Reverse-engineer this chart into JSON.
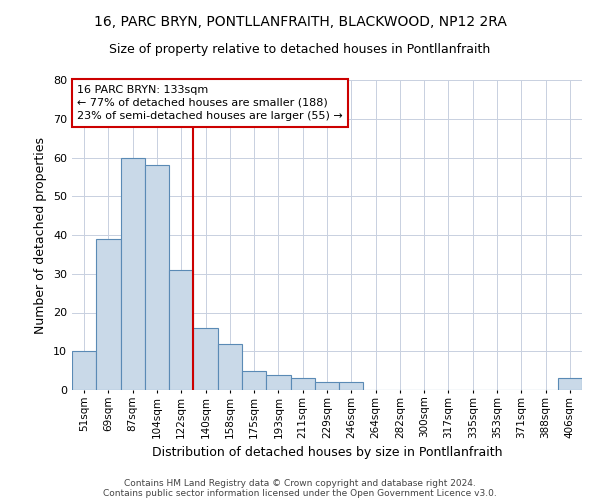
{
  "title1": "16, PARC BRYN, PONTLLANFRAITH, BLACKWOOD, NP12 2RA",
  "title2": "Size of property relative to detached houses in Pontllanfraith",
  "xlabel": "Distribution of detached houses by size in Pontllanfraith",
  "ylabel": "Number of detached properties",
  "categories": [
    "51sqm",
    "69sqm",
    "87sqm",
    "104sqm",
    "122sqm",
    "140sqm",
    "158sqm",
    "175sqm",
    "193sqm",
    "211sqm",
    "229sqm",
    "246sqm",
    "264sqm",
    "282sqm",
    "300sqm",
    "317sqm",
    "335sqm",
    "353sqm",
    "371sqm",
    "388sqm",
    "406sqm"
  ],
  "values": [
    10,
    39,
    60,
    58,
    31,
    16,
    12,
    5,
    4,
    3,
    2,
    2,
    0,
    0,
    0,
    0,
    0,
    0,
    0,
    0,
    3
  ],
  "bar_color": "#c9d9e8",
  "bar_edge_color": "#5a8ab5",
  "annotation_text": "16 PARC BRYN: 133sqm\n← 77% of detached houses are smaller (188)\n23% of semi-detached houses are larger (55) →",
  "annotation_box_color": "#ffffff",
  "annotation_box_edge": "#cc0000",
  "ylim": [
    0,
    80
  ],
  "yticks": [
    0,
    10,
    20,
    30,
    40,
    50,
    60,
    70,
    80
  ],
  "footer1": "Contains HM Land Registry data © Crown copyright and database right 2024.",
  "footer2": "Contains public sector information licensed under the Open Government Licence v3.0.",
  "background_color": "#ffffff",
  "grid_color": "#c8d0e0"
}
